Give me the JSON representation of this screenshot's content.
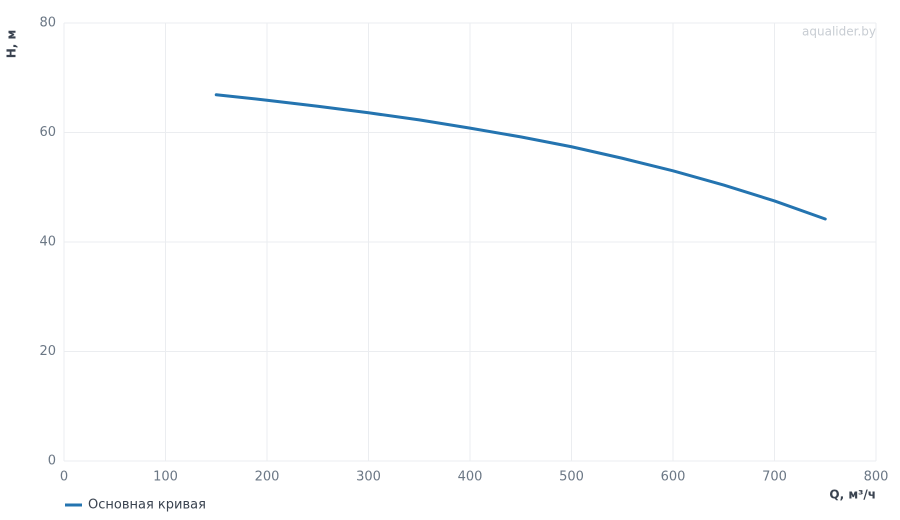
{
  "chart_data": {
    "type": "line",
    "watermark": "aqualider.by",
    "x_label": "Q, м³/ч",
    "y_label": "H, м",
    "x": [
      150,
      200,
      250,
      300,
      350,
      400,
      450,
      500,
      550,
      600,
      650,
      700,
      750
    ],
    "series": [
      {
        "name": "Основная кривая",
        "color": "#2474b0",
        "values": [
          66.9,
          65.9,
          64.8,
          63.6,
          62.3,
          60.8,
          59.2,
          57.4,
          55.3,
          53.0,
          50.4,
          47.5,
          44.2
        ]
      }
    ],
    "xlim": [
      0,
      800
    ],
    "xticks": [
      0,
      100,
      200,
      300,
      400,
      500,
      600,
      700,
      800
    ],
    "ylim": [
      0,
      80
    ],
    "yticks": [
      0,
      20,
      40,
      60,
      80
    ],
    "grid": true
  }
}
